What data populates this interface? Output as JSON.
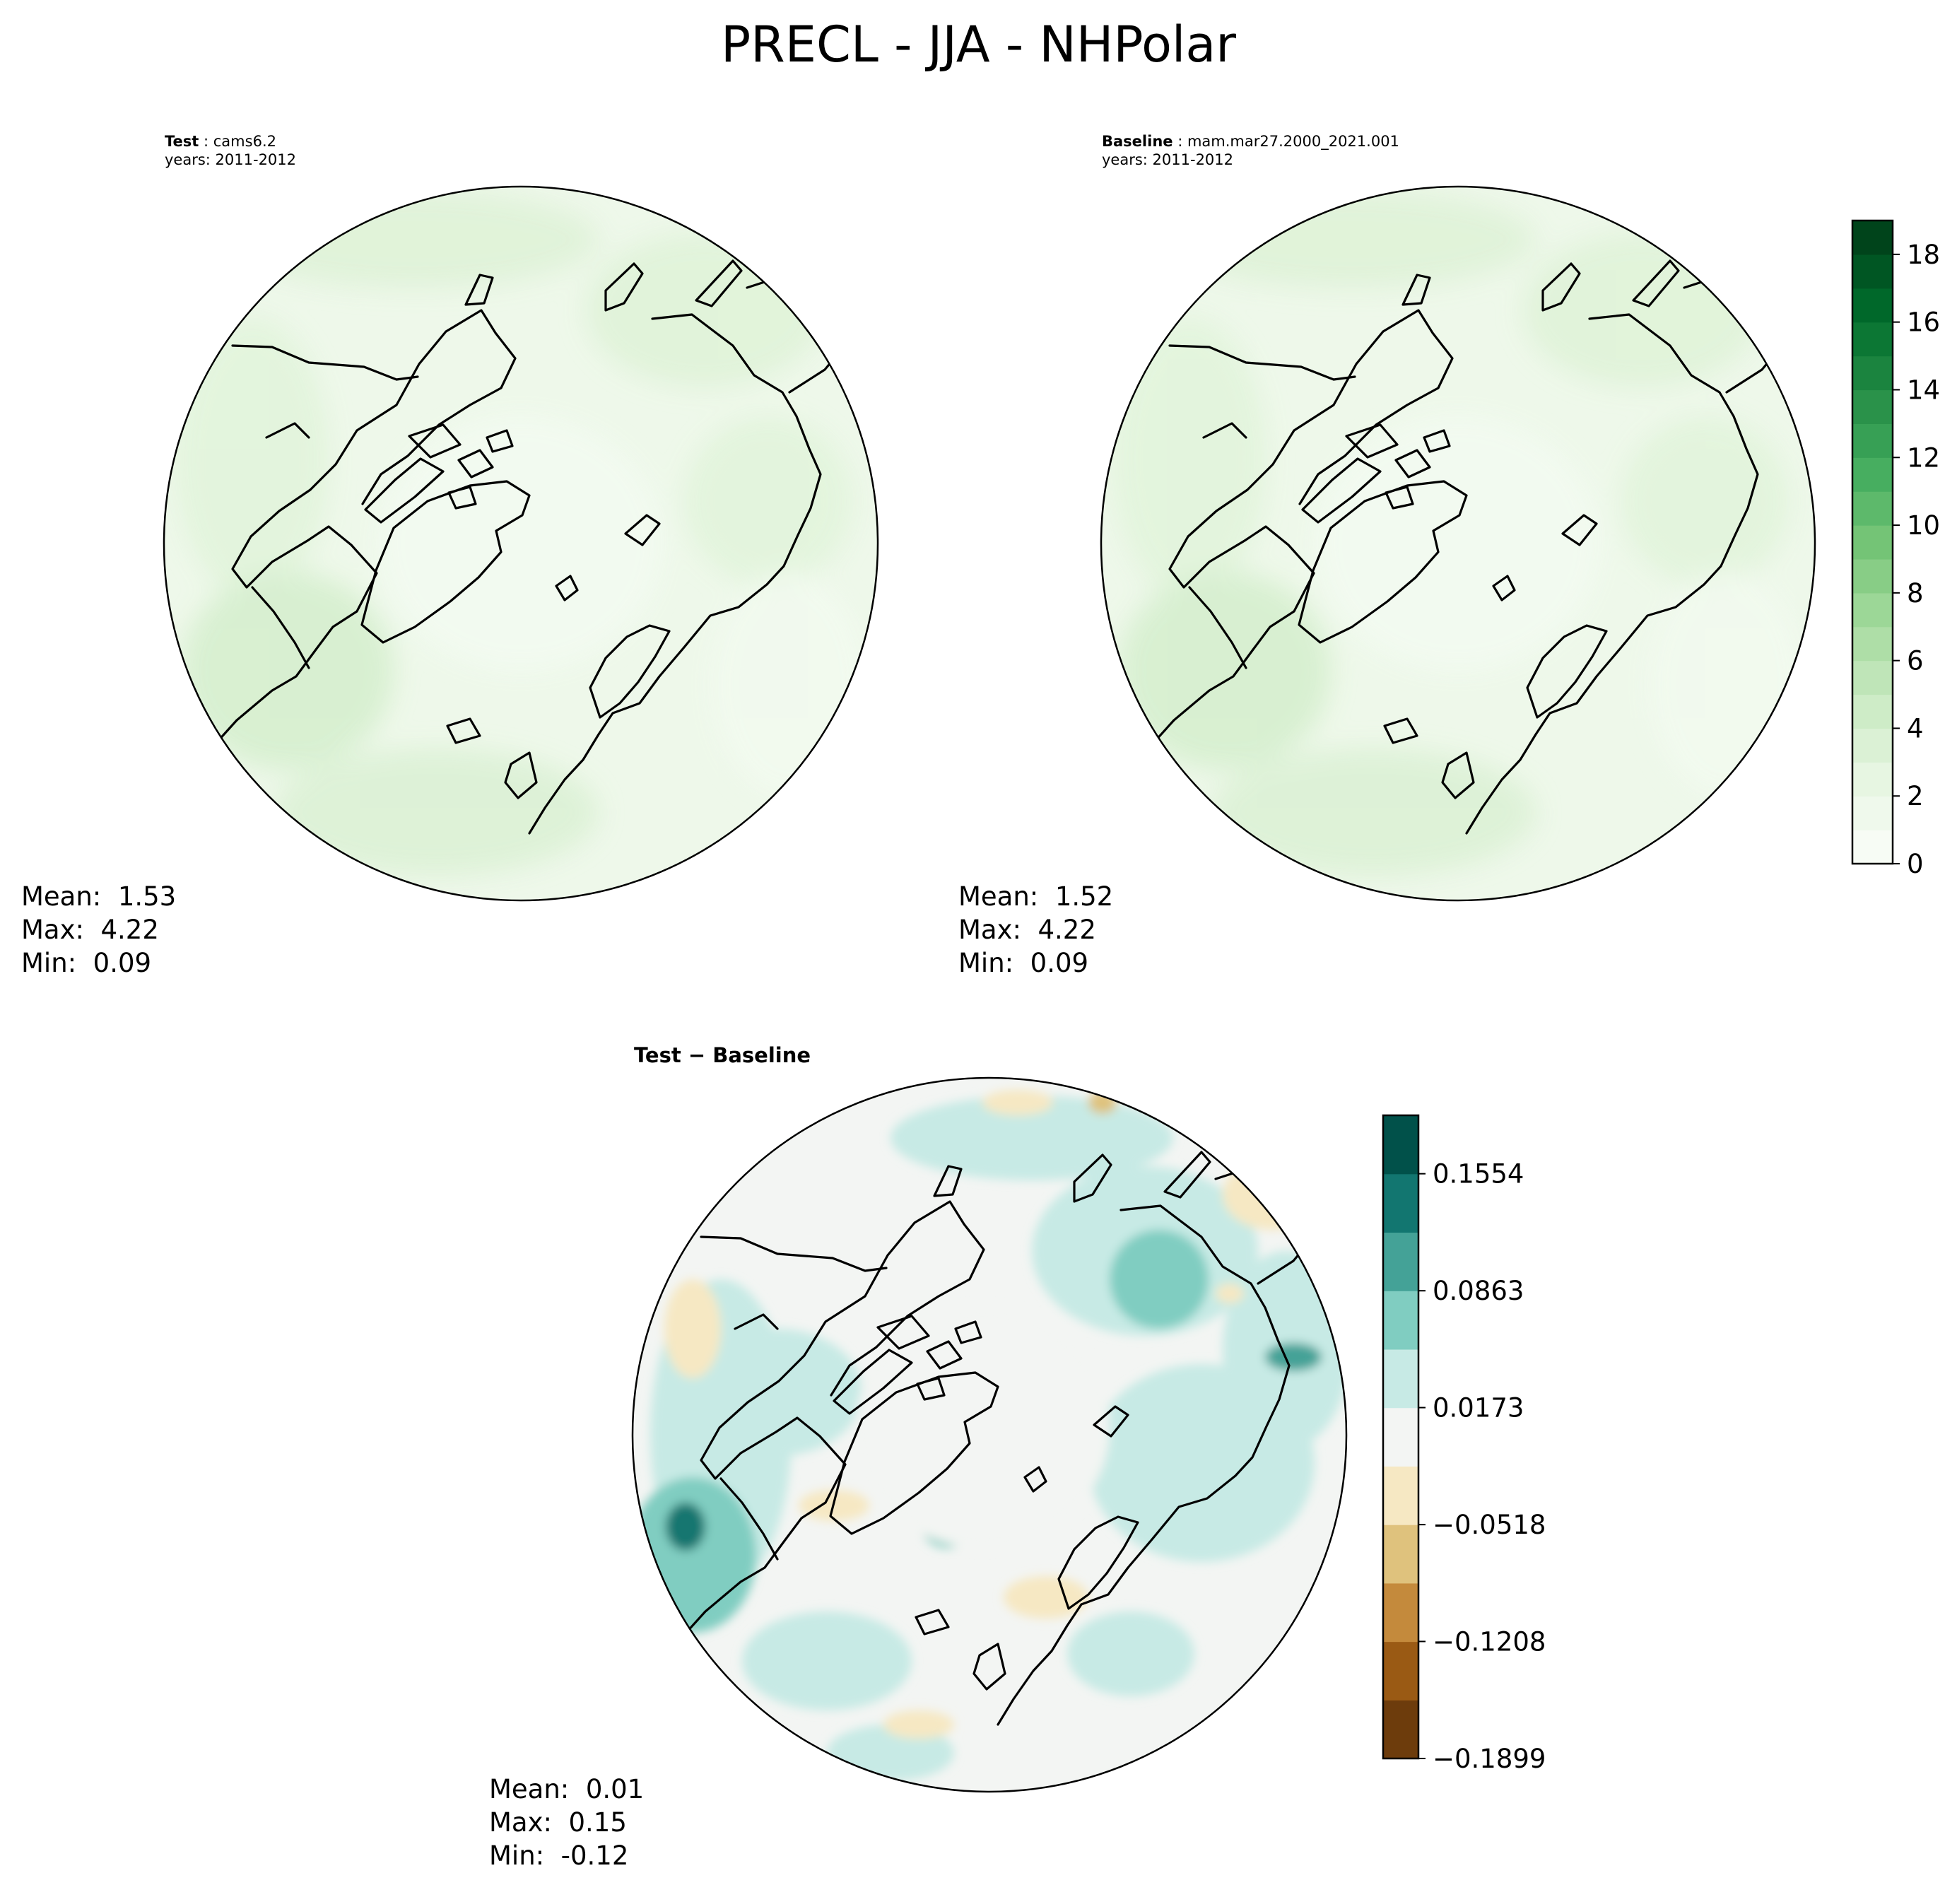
{
  "figure": {
    "title": "PRECL - JJA - NHPolar"
  },
  "panels": {
    "test": {
      "label_bold": "Test",
      "label_sep": " : ",
      "label_name": "cams6.2",
      "years": "years: 2011-2012",
      "stats": {
        "mean_label": "Mean:",
        "mean": "1.53",
        "max_label": "Max:",
        "max": "4.22",
        "min_label": "Min:",
        "min": "0.09"
      }
    },
    "baseline": {
      "label_bold": "Baseline",
      "label_sep": " : ",
      "label_name": "mam.mar27.2000_2021.001",
      "years": "years: 2011-2012",
      "stats": {
        "mean_label": "Mean:",
        "mean": "1.52",
        "max_label": "Max:",
        "max": "4.22",
        "min_label": "Min:",
        "min": "0.09"
      }
    },
    "diff": {
      "title_left": "Test",
      "title_sep": " − ",
      "title_right": "Baseline",
      "stats": {
        "mean_label": "Mean:",
        "mean": "0.01",
        "max_label": "Max:",
        "max": "0.15",
        "min_label": "Min:",
        "min": "-0.12"
      }
    }
  },
  "chart_data": [
    {
      "type": "heatmap",
      "projection": "north-polar-stereographic",
      "field": "PRECL",
      "season": "JJA",
      "colorbar": {
        "range": [
          0,
          19
        ],
        "ticks": [
          "0",
          "2",
          "4",
          "6",
          "8",
          "10",
          "12",
          "14",
          "16",
          "18"
        ],
        "tick_values": [
          0,
          2,
          4,
          6,
          8,
          10,
          12,
          14,
          16,
          18
        ],
        "levels": 19,
        "colormap": "Greens"
      }
    },
    {
      "type": "heatmap",
      "projection": "north-polar-stereographic",
      "field": "PRECL difference",
      "colorbar": {
        "range": [
          -0.1899,
          0.1899
        ],
        "ticks": [
          "0.1554",
          "0.0863",
          "0.0173",
          "−0.0518",
          "−0.1208",
          "−0.1899"
        ],
        "tick_values": [
          0.1554,
          0.0863,
          0.0173,
          -0.0518,
          -0.1208,
          -0.1899
        ],
        "colors": [
          "#6d3c0c",
          "#9a5a14",
          "#c48a3c",
          "#dfc27d",
          "#f6e8c3",
          "#f3f5f3",
          "#c7eae5",
          "#80cdc1",
          "#44a297",
          "#127670",
          "#01514a"
        ]
      }
    }
  ]
}
